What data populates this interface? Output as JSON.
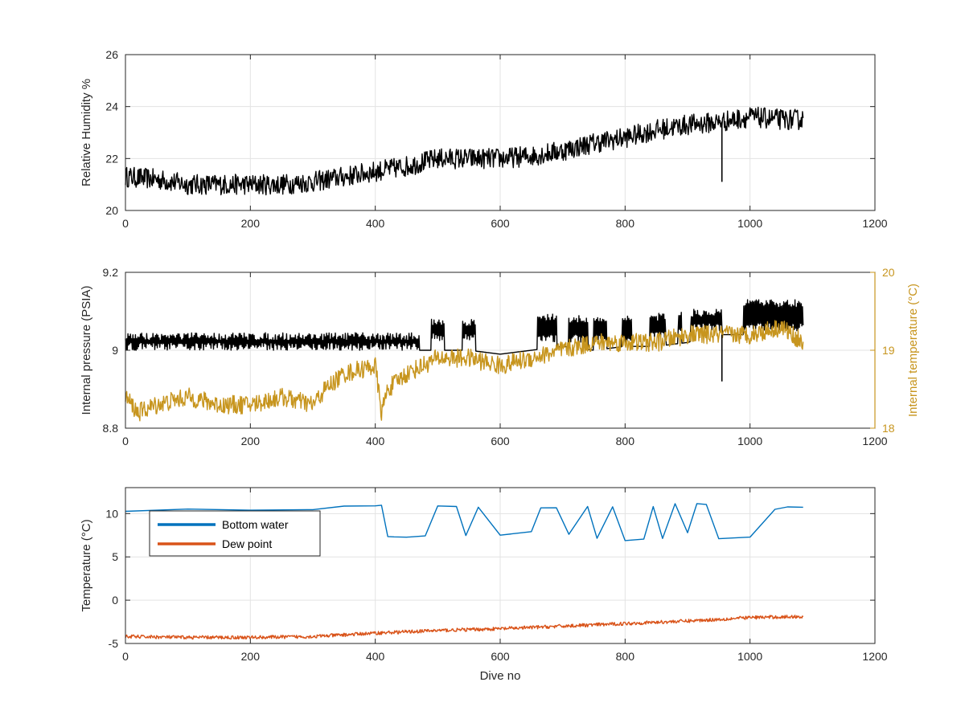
{
  "chart_data": [
    {
      "type": "line",
      "xlabel": "",
      "ylabel": "Relative Humidity %",
      "xlim": [
        0,
        1200
      ],
      "ylim": [
        20,
        26
      ],
      "xticks": [
        "0",
        "200",
        "400",
        "600",
        "800",
        "1000",
        "1200"
      ],
      "yticks": [
        "20",
        "22",
        "24",
        "26"
      ],
      "grid": true,
      "series": [
        {
          "color": "#000000",
          "x": [
            0,
            50,
            100,
            150,
            200,
            250,
            300,
            350,
            400,
            450,
            500,
            550,
            600,
            650,
            700,
            750,
            800,
            850,
            900,
            950,
            1000,
            1050,
            1085
          ],
          "y": [
            21.3,
            21.2,
            21.0,
            21.0,
            21.0,
            21.0,
            21.1,
            21.3,
            21.5,
            21.7,
            22.0,
            22.0,
            22.0,
            22.1,
            22.3,
            22.6,
            22.8,
            23.1,
            23.3,
            23.4,
            23.6,
            23.5,
            23.5
          ],
          "noise": 0.4
        }
      ],
      "annotations": [
        {
          "type": "spike",
          "x": 955,
          "y": 21.1
        }
      ]
    },
    {
      "type": "line",
      "xlabel": "",
      "ylabel": "Internal pressure (PSIA)",
      "ylabel_right": "Internal temperature (°C)",
      "xlim": [
        0,
        1200
      ],
      "ylim": [
        8.8,
        9.2
      ],
      "ylim_right": [
        18,
        20
      ],
      "xticks": [
        "0",
        "200",
        "400",
        "600",
        "800",
        "1000",
        "1200"
      ],
      "yticks": [
        "8.8",
        "9",
        "9.2"
      ],
      "yticks_right": [
        "18",
        "19",
        "20"
      ],
      "grid": true,
      "series": [
        {
          "axis": "left",
          "color": "#000000",
          "x": [
            0,
            50,
            100,
            150,
            200,
            250,
            300,
            340,
            360,
            400,
            410,
            420,
            450,
            500,
            550,
            600,
            650,
            700,
            750,
            800,
            850,
            900,
            950,
            1000,
            1050,
            1085
          ],
          "y": [
            9.0,
            9.02,
            9.02,
            9.02,
            9.02,
            9.02,
            9.01,
            9.02,
            9.03,
            9.03,
            8.99,
            8.98,
            9.0,
            9.0,
            9.0,
            8.99,
            9.0,
            9.01,
            9.0,
            9.01,
            9.01,
            9.02,
            9.04,
            9.04,
            9.05,
            9.07
          ],
          "bursts": [
            [
              0,
              470,
              9.035,
              9.01
            ],
            [
              490,
              510,
              9.07,
              9.035
            ],
            [
              540,
              560,
              9.07,
              9.035
            ],
            [
              660,
              690,
              9.085,
              9.03
            ],
            [
              710,
              740,
              9.08,
              9.03
            ],
            [
              750,
              770,
              9.08,
              9.03
            ],
            [
              795,
              810,
              9.08,
              9.03
            ],
            [
              840,
              865,
              9.085,
              9.04
            ],
            [
              885,
              890,
              9.09,
              9.05
            ],
            [
              905,
              955,
              9.095,
              9.06
            ],
            [
              990,
              1085,
              9.12,
              9.06
            ]
          ]
        },
        {
          "axis": "right",
          "color": "#C7951E",
          "x": [
            0,
            20,
            50,
            100,
            150,
            200,
            250,
            300,
            320,
            350,
            400,
            405,
            410,
            420,
            450,
            500,
            550,
            600,
            650,
            700,
            750,
            800,
            850,
            900,
            950,
            1000,
            1050,
            1085
          ],
          "y": [
            18.4,
            18.2,
            18.3,
            18.4,
            18.3,
            18.3,
            18.4,
            18.3,
            18.5,
            18.7,
            18.8,
            18.5,
            18.2,
            18.5,
            18.7,
            18.9,
            18.9,
            18.8,
            18.9,
            19.0,
            19.1,
            19.1,
            19.1,
            19.2,
            19.2,
            19.2,
            19.3,
            19.1
          ],
          "noise": 0.12
        }
      ],
      "annotations": [
        {
          "type": "spike",
          "x": 955,
          "y": 8.92
        }
      ]
    },
    {
      "type": "line",
      "xlabel": "Dive no",
      "ylabel": "Temperature (°C)",
      "xlim": [
        0,
        1200
      ],
      "ylim": [
        -5,
        13
      ],
      "xticks": [
        "0",
        "200",
        "400",
        "600",
        "800",
        "1000",
        "1200"
      ],
      "yticks": [
        "-5",
        "0",
        "5",
        "10"
      ],
      "grid": true,
      "legend": {
        "position": "top-left"
      },
      "series": [
        {
          "name": "Bottom water",
          "color": "#0072BD",
          "x": [
            0,
            100,
            200,
            300,
            350,
            400,
            410,
            420,
            430,
            450,
            480,
            500,
            530,
            545,
            565,
            600,
            650,
            665,
            690,
            710,
            740,
            755,
            780,
            800,
            830,
            845,
            860,
            880,
            900,
            915,
            930,
            950,
            1000,
            1040,
            1060,
            1085
          ],
          "y": [
            10.3,
            10.4,
            10.3,
            10.5,
            10.8,
            11.0,
            11.0,
            7.3,
            7.3,
            7.2,
            7.4,
            10.8,
            10.8,
            7.5,
            10.7,
            7.6,
            7.8,
            10.7,
            10.6,
            7.5,
            10.8,
            7.2,
            10.8,
            7.0,
            7.0,
            10.8,
            7.2,
            11.1,
            7.8,
            11.2,
            11.0,
            7.2,
            7.2,
            10.6,
            10.8,
            10.7
          ]
        },
        {
          "name": "Dew point",
          "color": "#D95319",
          "x": [
            0,
            100,
            200,
            300,
            400,
            500,
            600,
            700,
            800,
            900,
            955,
            1000,
            1085
          ],
          "y": [
            -4.2,
            -4.3,
            -4.3,
            -4.2,
            -3.8,
            -3.5,
            -3.3,
            -3.0,
            -2.7,
            -2.4,
            -2.2,
            -2.0,
            -1.9
          ],
          "noise": 0.2
        }
      ]
    }
  ]
}
